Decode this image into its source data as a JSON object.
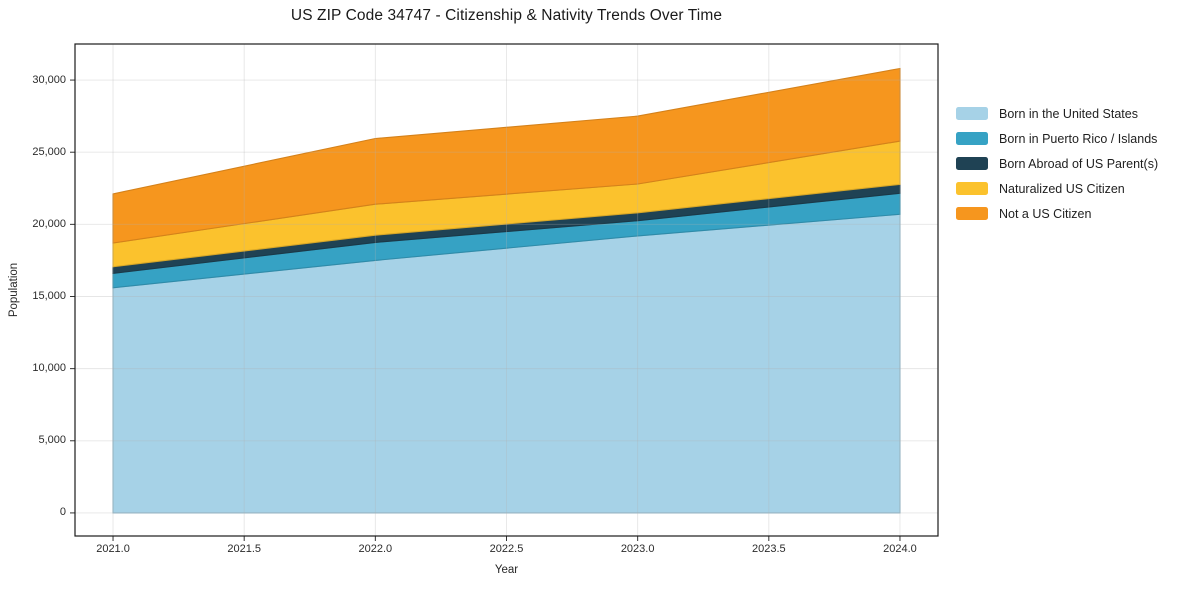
{
  "title": "US ZIP Code 34747 - Citizenship & Nativity Trends Over Time",
  "chart_data": {
    "type": "area",
    "stacked": true,
    "title": "US ZIP Code 34747 - Citizenship & Nativity Trends Over Time",
    "xlabel": "Year",
    "ylabel": "Population",
    "x": [
      2021,
      2022,
      2023,
      2024
    ],
    "series": [
      {
        "name": "Born in the United States",
        "color": "#A6D2E7",
        "values": [
          15600,
          17500,
          19200,
          20700
        ]
      },
      {
        "name": "Born in Puerto Rico / Islands",
        "color": "#36A2C4",
        "values": [
          1000,
          1250,
          1050,
          1450
        ]
      },
      {
        "name": "Born Abroad of US Parent(s)",
        "color": "#1F4254",
        "values": [
          460,
          500,
          550,
          620
        ]
      },
      {
        "name": "Naturalized US Citizen",
        "color": "#FBC22D",
        "values": [
          1650,
          2150,
          2000,
          3000
        ]
      },
      {
        "name": "Not a US Citizen",
        "color": "#F6961E",
        "values": [
          3400,
          4550,
          4700,
          5030
        ]
      }
    ],
    "stack_totals": [
      22110,
      25950,
      27500,
      30800
    ],
    "x_ticks": [
      {
        "v": 2021.0,
        "label": "2021.0"
      },
      {
        "v": 2021.5,
        "label": "2021.5"
      },
      {
        "v": 2022.0,
        "label": "2022.0"
      },
      {
        "v": 2022.5,
        "label": "2022.5"
      },
      {
        "v": 2023.0,
        "label": "2023.0"
      },
      {
        "v": 2023.5,
        "label": "2023.5"
      },
      {
        "v": 2024.0,
        "label": "2024.0"
      }
    ],
    "y_ticks": [
      {
        "v": 0,
        "label": "0"
      },
      {
        "v": 5000,
        "label": "5,000"
      },
      {
        "v": 10000,
        "label": "10,000"
      },
      {
        "v": 15000,
        "label": "15,000"
      },
      {
        "v": 20000,
        "label": "20,000"
      },
      {
        "v": 25000,
        "label": "25,000"
      },
      {
        "v": 30000,
        "label": "30,000"
      }
    ],
    "xlim": [
      2020.855,
      2024.145
    ],
    "ylim": [
      -1600,
      32500
    ],
    "grid": true,
    "grid_color": "#b0b0b0",
    "spine_color": "#1c1c1c",
    "legend_position": "right-outside",
    "background": "#ffffff"
  }
}
